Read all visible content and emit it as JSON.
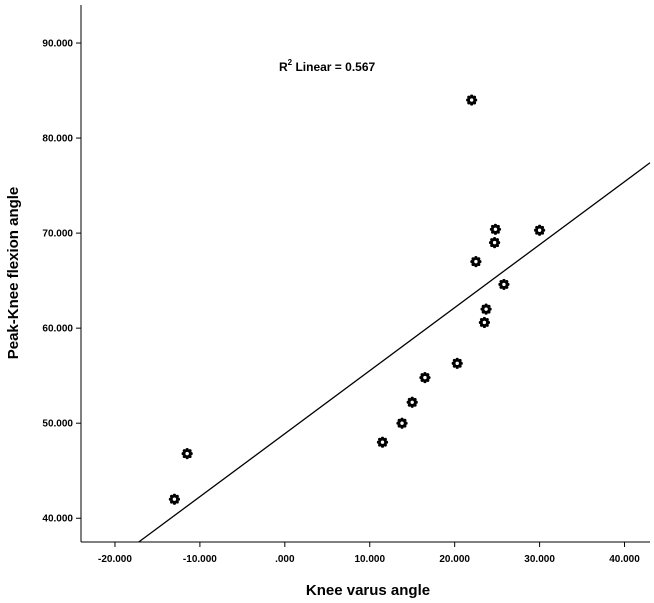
{
  "chart_data": {
    "type": "scatter",
    "title": "",
    "xlabel": "Knee varus angle",
    "ylabel": "Peak-Knee flexion angle",
    "xlim": [
      -24,
      43
    ],
    "ylim": [
      37.5,
      94
    ],
    "xticks": [
      -20,
      -10,
      0,
      10,
      20,
      30,
      40
    ],
    "xtick_labels": [
      "-20.000",
      "-10.000",
      ".000",
      "10.000",
      "20.000",
      "30.000",
      "40.000"
    ],
    "yticks": [
      40,
      50,
      60,
      70,
      80,
      90
    ],
    "ytick_labels": [
      "40.000",
      "50.000",
      "60.000",
      "70.000",
      "80.000",
      "90.000"
    ],
    "points": [
      {
        "x": -13.0,
        "y": 42.0
      },
      {
        "x": -11.5,
        "y": 46.8
      },
      {
        "x": 11.5,
        "y": 48.0
      },
      {
        "x": 13.8,
        "y": 50.0
      },
      {
        "x": 15.0,
        "y": 52.2
      },
      {
        "x": 16.5,
        "y": 54.8
      },
      {
        "x": 20.3,
        "y": 56.3
      },
      {
        "x": 23.5,
        "y": 60.6
      },
      {
        "x": 23.7,
        "y": 62.0
      },
      {
        "x": 22.5,
        "y": 67.0
      },
      {
        "x": 24.7,
        "y": 69.0
      },
      {
        "x": 24.8,
        "y": 70.4
      },
      {
        "x": 25.8,
        "y": 64.6
      },
      {
        "x": 30.0,
        "y": 70.3
      },
      {
        "x": 22.0,
        "y": 84.0
      }
    ],
    "fit_line": {
      "type": "linear",
      "x": [
        -17.2,
        43.0
      ],
      "y": [
        37.5,
        77.4
      ]
    },
    "annotation": {
      "prefix": "R",
      "sup": "2",
      "suffix": " Linear = 0.567"
    },
    "grid": false,
    "legend": "none"
  }
}
